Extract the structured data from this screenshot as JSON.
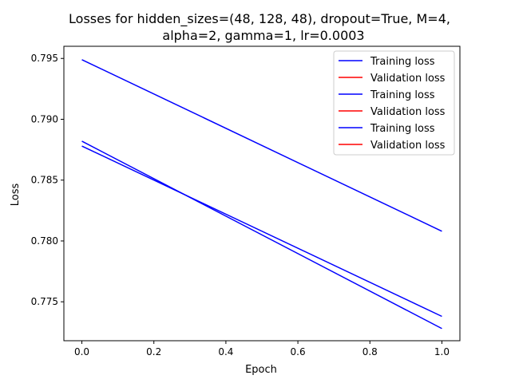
{
  "chart_data": {
    "type": "line",
    "title_line1": "Losses for hidden_sizes=(48, 128, 48), dropout=True, M=4,",
    "title_line2": "alpha=2, gamma=1, lr=0.0003",
    "xlabel": "Epoch",
    "ylabel": "Loss",
    "xlim": [
      -0.05,
      1.05
    ],
    "ylim": [
      0.7718,
      0.796
    ],
    "xticks": [
      0.0,
      0.2,
      0.4,
      0.6,
      0.8,
      1.0
    ],
    "xtick_labels": [
      "0.0",
      "0.2",
      "0.4",
      "0.6",
      "0.8",
      "1.0"
    ],
    "yticks": [
      0.775,
      0.78,
      0.785,
      0.79,
      0.795
    ],
    "ytick_labels": [
      "0.775",
      "0.780",
      "0.785",
      "0.790",
      "0.795"
    ],
    "grid": false,
    "legend_position": "top-right",
    "x": [
      0,
      1
    ],
    "series": [
      {
        "name": "Training loss",
        "color": "#0000ff",
        "values": [
          0.7949,
          0.7808
        ]
      },
      {
        "name": "Validation loss",
        "color": "#ff0000",
        "values": [
          null,
          null
        ]
      },
      {
        "name": "Training loss",
        "color": "#0000ff",
        "values": [
          0.7882,
          0.7728
        ]
      },
      {
        "name": "Validation loss",
        "color": "#ff0000",
        "values": [
          null,
          null
        ]
      },
      {
        "name": "Training loss",
        "color": "#0000ff",
        "values": [
          0.7878,
          0.7738
        ]
      },
      {
        "name": "Validation loss",
        "color": "#ff0000",
        "values": [
          null,
          null
        ]
      }
    ]
  }
}
